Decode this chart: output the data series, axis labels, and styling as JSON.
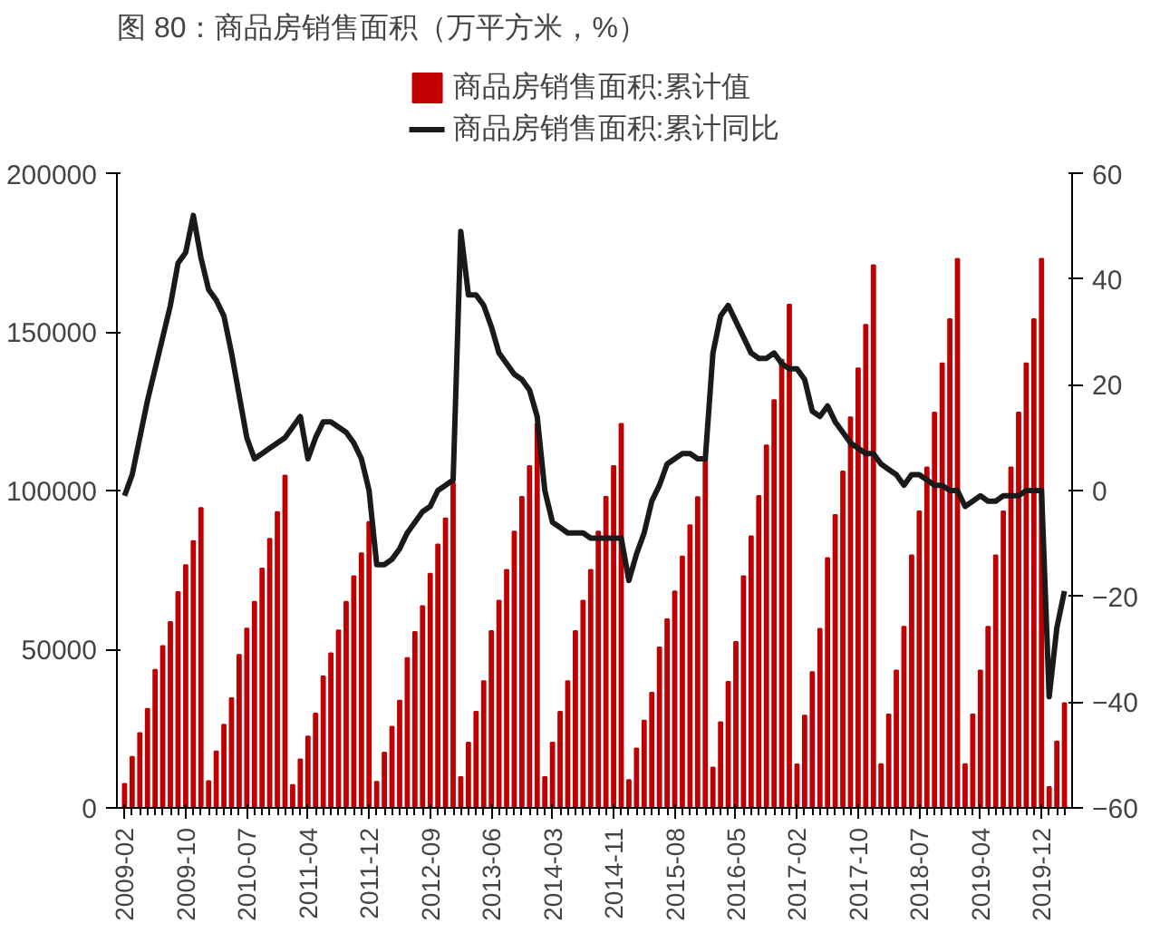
{
  "chart_data": {
    "type": "bar",
    "title": "图 80：商品房销售面积（万平方米，%）",
    "categories": [
      "2009-02",
      null,
      null,
      null,
      null,
      null,
      null,
      null,
      "2009-10",
      null,
      null,
      null,
      null,
      null,
      null,
      null,
      "2010-07",
      null,
      null,
      null,
      null,
      null,
      null,
      null,
      "2011-04",
      null,
      null,
      null,
      null,
      null,
      null,
      null,
      "2011-12",
      null,
      null,
      null,
      null,
      null,
      null,
      null,
      "2012-09",
      null,
      null,
      null,
      null,
      null,
      null,
      null,
      "2013-06",
      null,
      null,
      null,
      null,
      null,
      null,
      null,
      "2014-03",
      null,
      null,
      null,
      null,
      null,
      null,
      null,
      "2014-11",
      null,
      null,
      null,
      null,
      null,
      null,
      null,
      "2015-08",
      null,
      null,
      null,
      null,
      null,
      null,
      null,
      "2016-05",
      null,
      null,
      null,
      null,
      null,
      null,
      null,
      "2017-02",
      null,
      null,
      null,
      null,
      null,
      null,
      null,
      "2017-10",
      null,
      null,
      null,
      null,
      null,
      null,
      null,
      "2018-07",
      null,
      null,
      null,
      null,
      null,
      null,
      null,
      "2019-04",
      null,
      null,
      null,
      null,
      null,
      null,
      null,
      "2019-12",
      null,
      null,
      null
    ],
    "series": [
      {
        "name": "商品房销售面积:累计值",
        "color": "#c00000",
        "values": [
          7600,
          16100,
          23600,
          31200,
          43500,
          51000,
          58600,
          68000,
          76500,
          84100,
          94500,
          8400,
          17800,
          26200,
          34600,
          48200,
          56500,
          64900,
          75400,
          84800,
          93200,
          104700,
          7200,
          15300,
          22500,
          29700,
          41400,
          48700,
          55900,
          64900,
          73000,
          80200,
          90100,
          8200,
          17400,
          25600,
          33800,
          47200,
          55400,
          63600,
          73800,
          83000,
          91200,
          102500,
          9700,
          20600,
          30300,
          39900,
          55700,
          65300,
          75000,
          87100,
          98000,
          107700,
          121000,
          9700,
          20600,
          30300,
          39900,
          55700,
          65300,
          75000,
          87100,
          98000,
          107700,
          121000,
          8800,
          18700,
          27500,
          36300,
          50600,
          59400,
          68200,
          79200,
          89100,
          97900,
          110000,
          12700,
          27000,
          39700,
          52300,
          73000,
          85600,
          98300,
          114200,
          128500,
          141200,
          158600,
          13700,
          29100,
          42800,
          56400,
          78700,
          92300,
          106000,
          123100,
          138500,
          152200,
          171000,
          13800,
          29400,
          43300,
          57100,
          79600,
          93400,
          107300,
          124600,
          140100,
          154000,
          173000,
          13800,
          29400,
          43300,
          57100,
          79600,
          93400,
          107300,
          124600,
          140100,
          154000,
          173000,
          6600,
          20900,
          33000
        ]
      },
      {
        "name": "商品房销售面积:累计同比",
        "type": "line",
        "axis": "y2",
        "color": "#1a1a1a",
        "values": [
          -1,
          3,
          10,
          17,
          23,
          29,
          35,
          43,
          45,
          52,
          44,
          38,
          36,
          33,
          26,
          18,
          10,
          6,
          7,
          8,
          9,
          10,
          12,
          14,
          6,
          10,
          13,
          13,
          12,
          11,
          9,
          6,
          0,
          -14,
          -14,
          -13,
          -11,
          -8,
          -6,
          -4,
          -3,
          0,
          1,
          2,
          49,
          37,
          37,
          35,
          31,
          26,
          24,
          22,
          21,
          19,
          14,
          0,
          -6,
          -7,
          -8,
          -8,
          -8,
          -9,
          -9,
          -9,
          -9,
          -9,
          -17,
          -12,
          -8,
          -2,
          1,
          5,
          6,
          7,
          7,
          6,
          6,
          26,
          33,
          35,
          32,
          29,
          26,
          25,
          25,
          26,
          24,
          23,
          23,
          21,
          15,
          14,
          16,
          13,
          11,
          9,
          8,
          7,
          7,
          5,
          4,
          3,
          1,
          3,
          3,
          2,
          1,
          1,
          0,
          0,
          -3,
          -2,
          -1,
          -2,
          -2,
          -1,
          -1,
          -1,
          0,
          0,
          0,
          -39,
          -26,
          -19
        ]
      }
    ],
    "ylim": [
      0,
      200000
    ],
    "yticks": [
      0,
      50000,
      100000,
      150000,
      200000
    ],
    "y2lim": [
      -60,
      60
    ],
    "y2ticks": [
      -60,
      -40,
      -20,
      0,
      20,
      40,
      60
    ],
    "legend": "top"
  }
}
